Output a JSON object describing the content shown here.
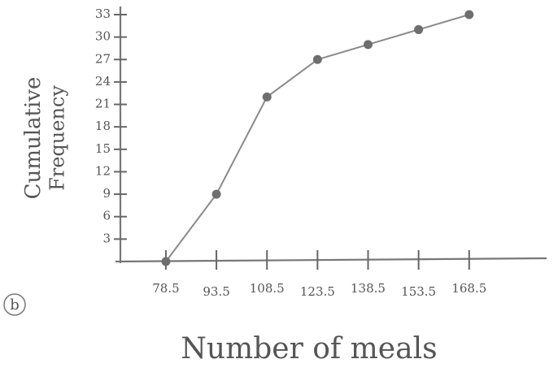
{
  "chart_data": {
    "type": "line",
    "annotation": "b",
    "ylabel": [
      "Cumulative",
      "Frequency"
    ],
    "xlabel": "Number of meals",
    "x": [
      78.5,
      93.5,
      108.5,
      123.5,
      138.5,
      153.5,
      168.5
    ],
    "values": [
      0,
      9,
      22,
      27,
      29,
      31,
      33
    ],
    "color": "#8a8a8a",
    "point_color": "#6e6e6e",
    "xlim": [
      65,
      191
    ],
    "ylim": [
      0,
      33
    ],
    "xticks": [
      78.5,
      93.5,
      108.5,
      123.5,
      138.5,
      153.5,
      168.5
    ],
    "yticks": [
      3,
      6,
      9,
      12,
      15,
      18,
      21,
      24,
      27,
      30,
      33
    ]
  }
}
